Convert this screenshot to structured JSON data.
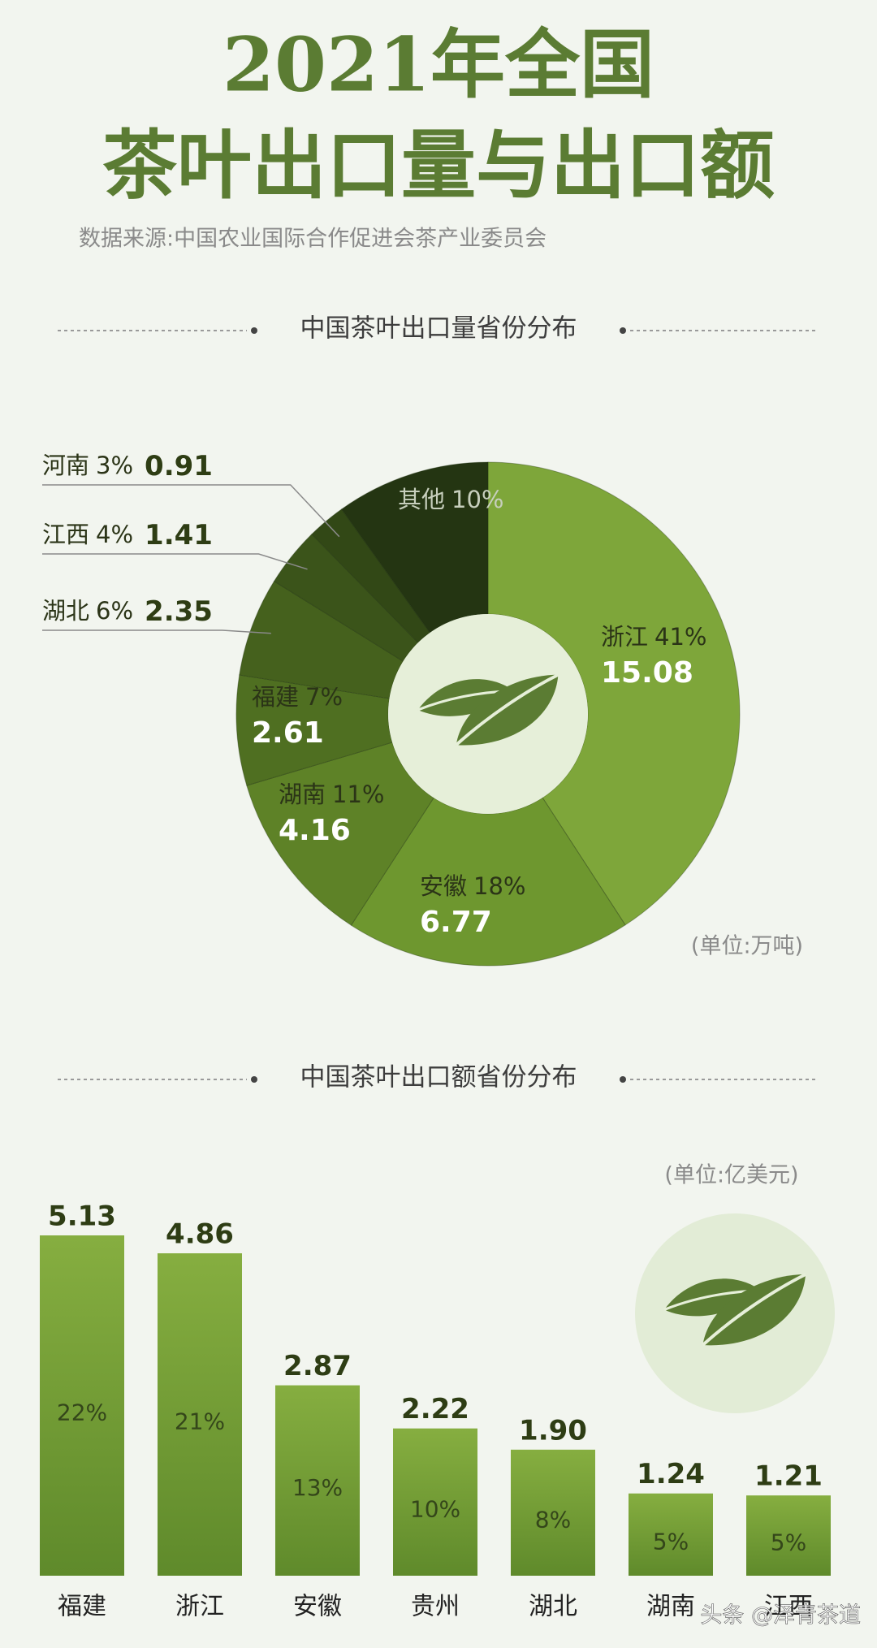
{
  "header": {
    "title_lines": [
      "2021年全国",
      "茶叶出口量与出口额"
    ],
    "source": "数据来源:中国农业国际合作促进会茶产业委员会"
  },
  "chart_data": [
    {
      "type": "donut",
      "title": "中国茶叶出口量省份分布",
      "unit": "(单位:万吨)",
      "categories": [
        "浙江",
        "安徽",
        "湖南",
        "福建",
        "湖北",
        "江西",
        "河南",
        "其他"
      ],
      "values": [
        15.08,
        6.77,
        4.16,
        2.61,
        2.35,
        1.41,
        0.91,
        3.65
      ],
      "value_labels": [
        "15.08",
        "6.77",
        "4.16",
        "2.61",
        "2.35",
        "1.41",
        "0.91",
        null
      ],
      "percent_labels": [
        "41%",
        "18%",
        "11%",
        "7%",
        "6%",
        "4%",
        "3%",
        "10%"
      ],
      "colors": [
        "#7ea63a",
        "#6e972f",
        "#5e8227",
        "#4f6f21",
        "#45611d",
        "#3b541a",
        "#324816",
        "#243512"
      ]
    },
    {
      "type": "bar",
      "title": "中国茶叶出口额省份分布",
      "unit": "(单位:亿美元)",
      "categories": [
        "福建",
        "浙江",
        "安徽",
        "贵州",
        "湖北",
        "湖南",
        "江西"
      ],
      "values": [
        5.13,
        4.86,
        2.87,
        2.22,
        1.9,
        1.24,
        1.21
      ],
      "value_labels": [
        "5.13",
        "4.86",
        "2.87",
        "2.22",
        "1.90",
        "1.24",
        "1.21"
      ],
      "percent_labels": [
        "22%",
        "21%",
        "13%",
        "10%",
        "8%",
        "5%",
        "5%"
      ],
      "color": "#7aa238"
    }
  ],
  "watermark": "头条 @泽青茶道"
}
